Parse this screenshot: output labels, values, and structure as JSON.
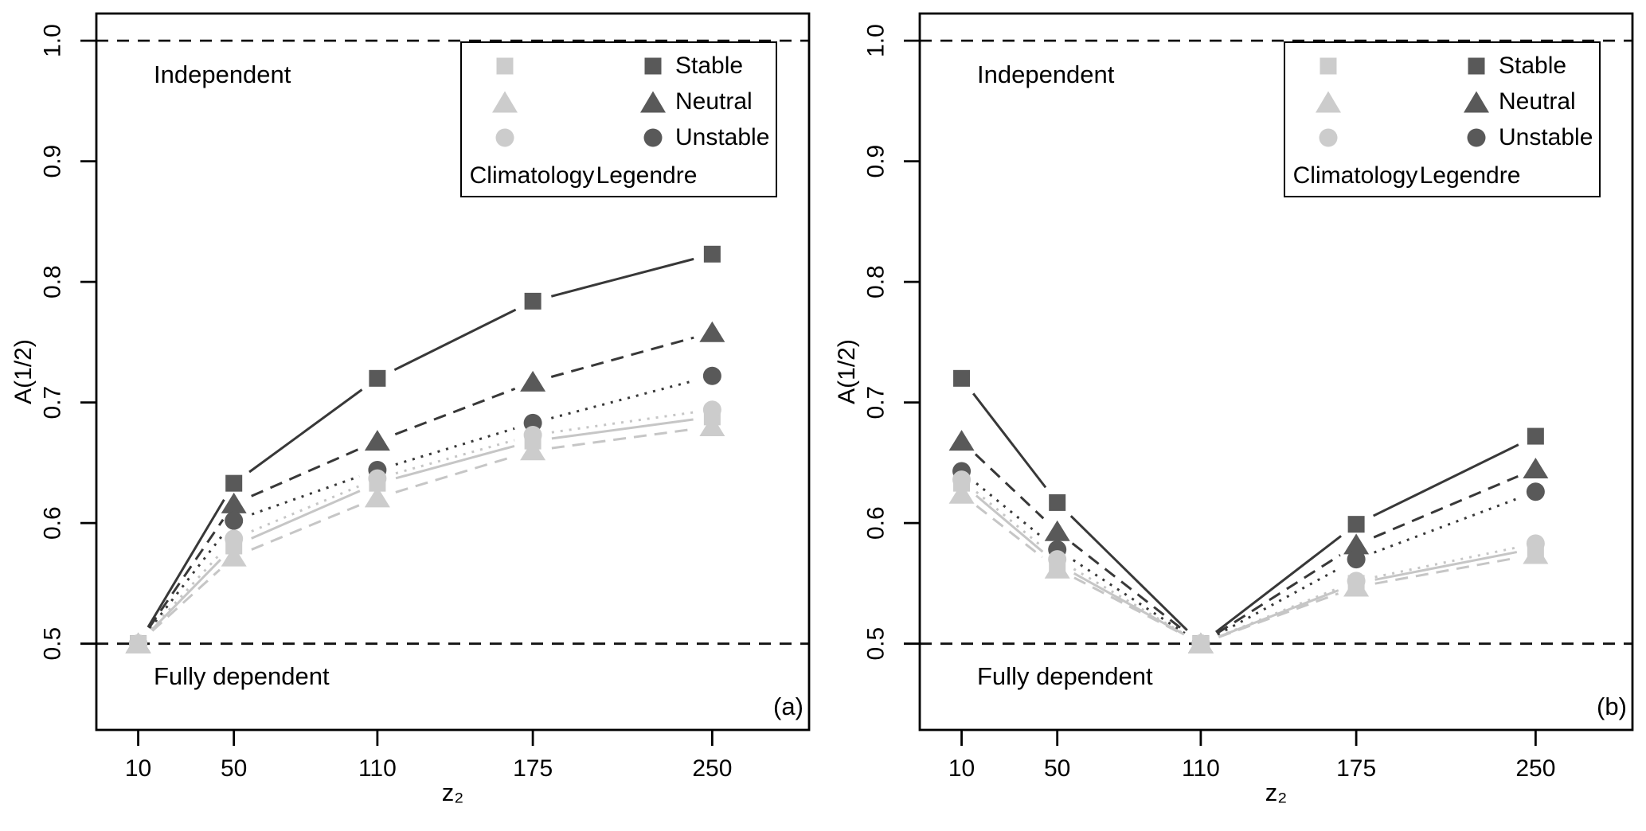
{
  "figure": {
    "background": "#ffffff",
    "colors": {
      "climatology_marker": "#cccccc",
      "climatology_line": "#c6c6c6",
      "legendre_marker": "#595959",
      "legendre_line": "#383838",
      "reference": "#111111",
      "axis": "#000000"
    },
    "legend": {
      "rows": [
        {
          "shape": "square",
          "label": "Stable"
        },
        {
          "shape": "triangle",
          "label": "Neutral"
        },
        {
          "shape": "circle",
          "label": "Unstable"
        }
      ],
      "columns": [
        {
          "name": "Climatology",
          "color": "#cccccc"
        },
        {
          "name": "Legendre",
          "color": "#595959"
        }
      ]
    }
  },
  "chart_data": [
    {
      "type": "line",
      "panel_label": "(a)",
      "xlabel": "z₂",
      "ylabel": "A(1/2)",
      "x": [
        10,
        50,
        110,
        175,
        250
      ],
      "xticks": [
        10,
        50,
        110,
        175,
        250
      ],
      "yticks": [
        0.5,
        0.6,
        0.7,
        0.8,
        0.9,
        1.0
      ],
      "xlim": [
        -7.5,
        290.5
      ],
      "ylim": [
        0.4285,
        1.0225
      ],
      "grid": false,
      "legend_position": "top-right",
      "annotations": {
        "top": "Independent",
        "bottom": "Fully dependent"
      },
      "reference_lines": [
        {
          "y": 1.0
        },
        {
          "y": 0.5
        }
      ],
      "series": [
        {
          "id": "legendre-neutral",
          "name": "Legendre Neutral",
          "method": "legendre",
          "marker": "triangle",
          "line": "dashed",
          "values": [
            0.5,
            0.616,
            0.668,
            0.717,
            0.758
          ]
        },
        {
          "id": "legendre-stable",
          "name": "Legendre Stable",
          "method": "legendre",
          "marker": "square",
          "line": "solid",
          "values": [
            0.5,
            0.633,
            0.72,
            0.784,
            0.823
          ]
        },
        {
          "id": "legendre-unstable",
          "name": "Legendre Unstable",
          "method": "legendre",
          "marker": "circle",
          "line": "dotted",
          "values": [
            0.5,
            0.602,
            0.644,
            0.683,
            0.722
          ]
        },
        {
          "id": "climatology-neutral",
          "name": "Climatology Neutral",
          "method": "climatology",
          "marker": "triangle",
          "line": "dashed",
          "values": [
            0.5,
            0.572,
            0.621,
            0.66,
            0.68
          ]
        },
        {
          "id": "climatology-stable",
          "name": "Climatology Stable",
          "method": "climatology",
          "marker": "square",
          "line": "solid",
          "values": [
            0.5,
            0.581,
            0.633,
            0.668,
            0.688
          ]
        },
        {
          "id": "climatology-unstable",
          "name": "Climatology Unstable",
          "method": "climatology",
          "marker": "circle",
          "line": "dotted",
          "values": [
            0.5,
            0.587,
            0.637,
            0.673,
            0.694
          ]
        }
      ]
    },
    {
      "type": "line",
      "panel_label": "(b)",
      "xlabel": "z₂",
      "ylabel": "A(1/2)",
      "x": [
        10,
        50,
        110,
        175,
        250
      ],
      "xticks": [
        10,
        50,
        110,
        175,
        250
      ],
      "yticks": [
        0.5,
        0.6,
        0.7,
        0.8,
        0.9,
        1.0
      ],
      "xlim": [
        -7.5,
        290.5
      ],
      "ylim": [
        0.4285,
        1.0225
      ],
      "grid": false,
      "legend_position": "top-right",
      "annotations": {
        "top": "Independent",
        "bottom": "Fully dependent"
      },
      "reference_lines": [
        {
          "y": 1.0
        },
        {
          "y": 0.5
        }
      ],
      "series": [
        {
          "id": "legendre-neutral",
          "name": "Legendre Neutral",
          "method": "legendre",
          "marker": "triangle",
          "line": "dashed",
          "values": [
            0.668,
            0.593,
            0.5,
            0.582,
            0.645
          ]
        },
        {
          "id": "legendre-stable",
          "name": "Legendre Stable",
          "method": "legendre",
          "marker": "square",
          "line": "solid",
          "values": [
            0.72,
            0.617,
            0.5,
            0.599,
            0.672
          ]
        },
        {
          "id": "legendre-unstable",
          "name": "Legendre Unstable",
          "method": "legendre",
          "marker": "circle",
          "line": "dotted",
          "values": [
            0.643,
            0.578,
            0.5,
            0.57,
            0.626
          ]
        },
        {
          "id": "climatology-neutral",
          "name": "Climatology Neutral",
          "method": "climatology",
          "marker": "triangle",
          "line": "dashed",
          "values": [
            0.624,
            0.562,
            0.5,
            0.547,
            0.574
          ]
        },
        {
          "id": "climatology-stable",
          "name": "Climatology Stable",
          "method": "climatology",
          "marker": "square",
          "line": "solid",
          "values": [
            0.633,
            0.566,
            0.5,
            0.55,
            0.579
          ]
        },
        {
          "id": "climatology-unstable",
          "name": "Climatology Unstable",
          "method": "climatology",
          "marker": "circle",
          "line": "dotted",
          "values": [
            0.636,
            0.57,
            0.5,
            0.552,
            0.583
          ]
        }
      ]
    }
  ]
}
